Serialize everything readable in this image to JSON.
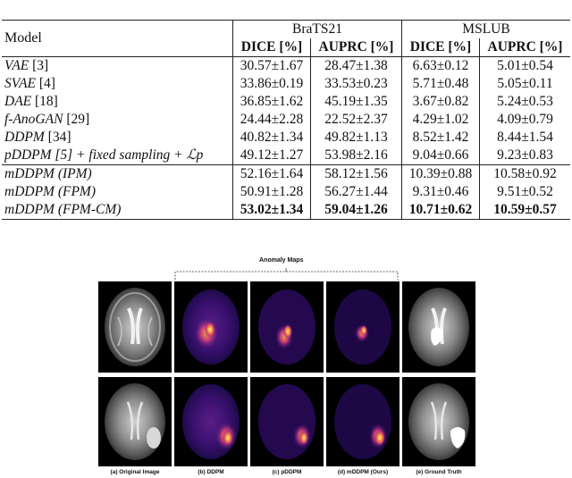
{
  "table": {
    "model_header": "Model",
    "datasets": [
      "BraTS21",
      "MSLUB"
    ],
    "metrics": [
      "DICE [%]",
      "AUPRC [%]",
      "DICE [%]",
      "AUPRC [%]"
    ],
    "rows": [
      {
        "name": "VAE",
        "ref": " [3]",
        "values": [
          "30.57±1.67",
          "28.47±1.38",
          "6.63±0.12",
          "5.01±0.54"
        ]
      },
      {
        "name": "SVAE",
        "ref": " [4]",
        "values": [
          "33.86±0.19",
          "33.53±0.23",
          "5.71±0.48",
          "5.05±0.11"
        ]
      },
      {
        "name": "DAE",
        "ref": " [18]",
        "values": [
          "36.85±1.62",
          "45.19±1.35",
          "3.67±0.82",
          "5.24±0.53"
        ]
      },
      {
        "name": "f-AnoGAN",
        "ref": " [29]",
        "values": [
          "24.44±2.28",
          "22.52±2.37",
          "4.29±1.02",
          "4.09±0.79"
        ]
      },
      {
        "name": "DDPM",
        "ref": " [34]",
        "values": [
          "40.82±1.34",
          "49.82±1.13",
          "8.52±1.42",
          "8.44±1.54"
        ]
      },
      {
        "name": "pDDPM [5] + fixed sampling + ℒp",
        "ref": "",
        "values": [
          "49.12±1.27",
          "53.98±2.16",
          "9.04±0.66",
          "9.23±0.83"
        ]
      },
      {
        "name": "mDDPM (IPM)",
        "ref": "",
        "values": [
          "52.16±1.64",
          "58.12±1.56",
          "10.39±0.88",
          "10.58±0.92"
        ]
      },
      {
        "name": "mDDPM (FPM)",
        "ref": "",
        "values": [
          "50.91±1.28",
          "56.27±1.44",
          "9.31±0.46",
          "9.51±0.52"
        ]
      },
      {
        "name": "mDDPM (FPM-CM)",
        "ref": "",
        "values": [
          "53.02±1.34",
          "59.04±1.26",
          "10.71±0.62",
          "10.59±0.57"
        ]
      }
    ]
  },
  "figure": {
    "title": "Anomaly Maps",
    "captions": [
      "(a) Original Image",
      "(b) DDPM",
      "(c) pDDPM",
      "(d) mDDPM (Ours)",
      "(e) Ground Truth"
    ]
  }
}
